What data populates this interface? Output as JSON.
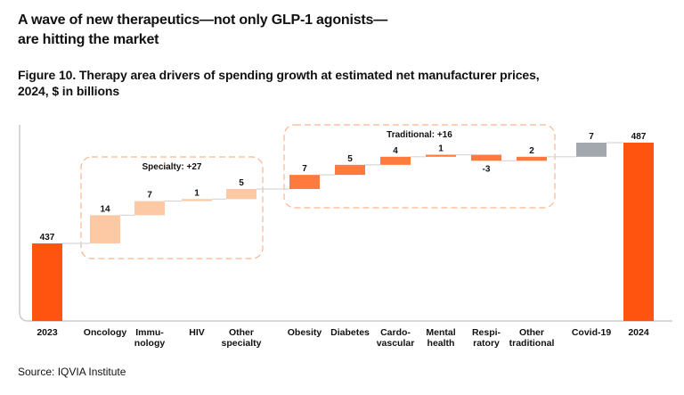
{
  "headline": [
    "A wave of new therapeutics—not only GLP-1 agonists—",
    "are hitting the market"
  ],
  "figure_title": [
    "Figure 10. Therapy area drivers of spending growth at estimated net manufacturer prices,",
    "2024, $ in billions"
  ],
  "source": "Source: IQVIA Institute",
  "chart_data": {
    "type": "waterfall",
    "title": "Figure 10. Therapy area drivers of spending growth at estimated net manufacturer prices, 2024, $ in billions",
    "unit": "$ in billions",
    "grid": false,
    "categories": [
      {
        "label": [
          "2023"
        ],
        "value": 437,
        "kind": "total",
        "value_label": "437"
      },
      {
        "label": [
          "Oncology"
        ],
        "value": 14,
        "kind": "specialty",
        "value_label": "14"
      },
      {
        "label": [
          "Immu-",
          "nology"
        ],
        "value": 7,
        "kind": "specialty",
        "value_label": "7"
      },
      {
        "label": [
          "HIV"
        ],
        "value": 1,
        "kind": "specialty",
        "value_label": "1"
      },
      {
        "label": [
          "Other",
          "specialty"
        ],
        "value": 5,
        "kind": "specialty",
        "value_label": "5"
      },
      {
        "label": [
          "Obesity"
        ],
        "value": 7,
        "kind": "traditional",
        "value_label": "7"
      },
      {
        "label": [
          "Diabetes"
        ],
        "value": 5,
        "kind": "traditional",
        "value_label": "5"
      },
      {
        "label": [
          "Cardo-",
          "vascular"
        ],
        "value": 4,
        "kind": "traditional",
        "value_label": "4"
      },
      {
        "label": [
          "Mental",
          "health"
        ],
        "value": 1,
        "kind": "traditional",
        "value_label": "1"
      },
      {
        "label": [
          "Respi-",
          "ratory"
        ],
        "value": -3,
        "kind": "traditional",
        "value_label": "-3"
      },
      {
        "label": [
          "Other",
          "traditional"
        ],
        "value": 2,
        "kind": "traditional",
        "value_label": "2"
      },
      {
        "label": [
          "Covid-19"
        ],
        "value": 7,
        "kind": "covid",
        "value_label": "7"
      },
      {
        "label": [
          "2024"
        ],
        "value": 487,
        "kind": "total",
        "value_label": "487"
      }
    ],
    "groups": [
      {
        "label": "Specialty: +27",
        "from": 1,
        "to": 4
      },
      {
        "label": "Traditional: +16",
        "from": 5,
        "to": 10
      }
    ],
    "colors": {
      "total": "#ff5310",
      "specialty": "#fdc9a5",
      "traditional": "#ff7a3d",
      "covid": "#a3a7ae",
      "group_box": "#fdb48e",
      "axis": "#c8cbd0"
    }
  }
}
